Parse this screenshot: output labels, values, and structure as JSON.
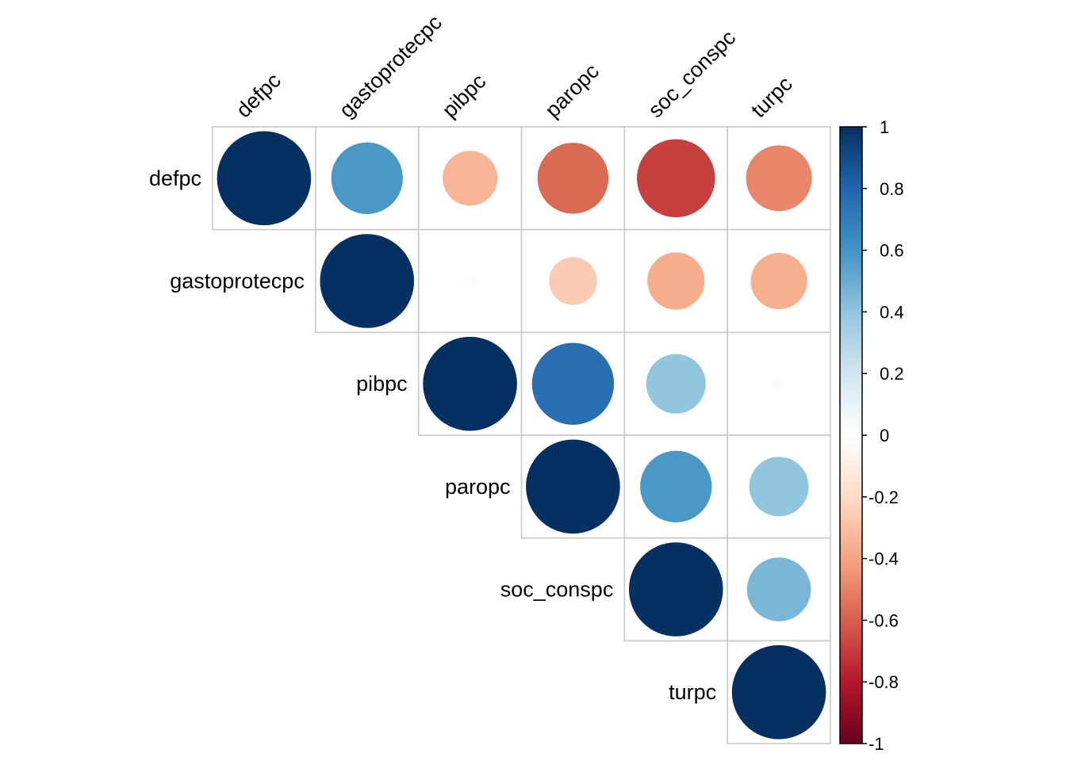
{
  "chart_data": {
    "type": "heatmap",
    "subtype": "correlation-matrix-upper-circles",
    "title": "",
    "variables": [
      "defpc",
      "gastoprotecpc",
      "pibpc",
      "paropc",
      "soc_conspc",
      "turpc"
    ],
    "matrix": [
      [
        1.0,
        0.58,
        -0.34,
        -0.57,
        -0.69,
        -0.49
      ],
      [
        0.58,
        1.0,
        -0.02,
        -0.26,
        -0.37,
        -0.36
      ],
      [
        -0.34,
        -0.02,
        1.0,
        0.76,
        0.4,
        0.02
      ],
      [
        -0.57,
        -0.26,
        0.76,
        1.0,
        0.58,
        0.4
      ],
      [
        -0.69,
        -0.37,
        0.4,
        0.58,
        1.0,
        0.46
      ],
      [
        -0.49,
        -0.36,
        0.02,
        0.4,
        0.46,
        1.0
      ]
    ],
    "triangle": "upper",
    "shape": "circle",
    "color_scale": {
      "range": [
        -1,
        1
      ],
      "ticks": [
        "1",
        "0.8",
        "0.6",
        "0.4",
        "0.2",
        "0",
        "-0.2",
        "-0.4",
        "-0.6",
        "-0.8",
        "-1"
      ],
      "tick_values": [
        1,
        0.8,
        0.6,
        0.4,
        0.2,
        0,
        -0.2,
        -0.4,
        -0.6,
        -0.8,
        -1
      ],
      "palette": [
        "#67001F",
        "#B2182B",
        "#D6604D",
        "#F4A582",
        "#FDDBC7",
        "#FFFFFF",
        "#D1E5F0",
        "#92C5DE",
        "#4393C3",
        "#2166AC",
        "#053061"
      ],
      "legend_position": "right"
    },
    "grid_color": "#C8C8C8"
  }
}
